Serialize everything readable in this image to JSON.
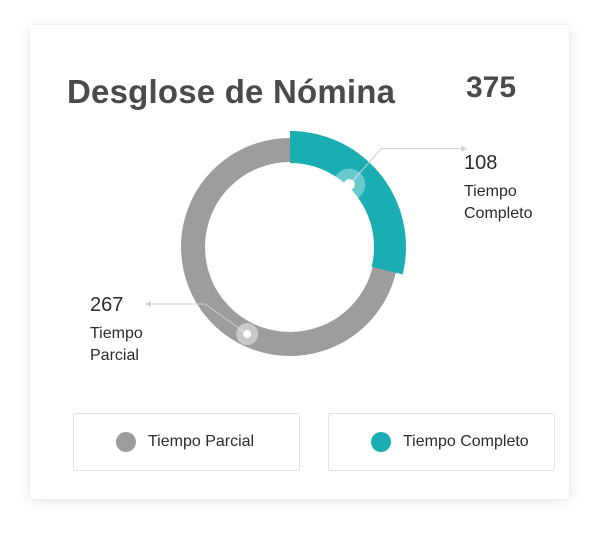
{
  "header": {
    "title": "Desglose de Nómina",
    "total": "375"
  },
  "colors": {
    "parcial": "#9d9d9d",
    "completo": "#1aaeb2",
    "text": "#4a4a4a"
  },
  "chart_data": {
    "type": "pie",
    "title": "Desglose de Nómina",
    "total": 375,
    "series": [
      {
        "name": "Tiempo Parcial",
        "value": 267
      },
      {
        "name": "Tiempo Completo",
        "value": 108
      }
    ],
    "legend_position": "bottom"
  },
  "callouts": {
    "completo": {
      "value": "108",
      "label": "Tiempo Completo"
    },
    "parcial": {
      "value": "267",
      "label": "Tiempo Parcial"
    }
  },
  "legend": [
    {
      "label": "Tiempo Parcial"
    },
    {
      "label": "Tiempo Completo"
    }
  ]
}
